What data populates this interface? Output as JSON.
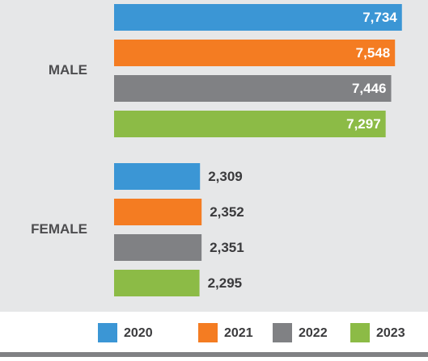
{
  "chart_data": {
    "type": "bar",
    "orientation": "horizontal",
    "categories": [
      "MALE",
      "FEMALE"
    ],
    "series": [
      {
        "name": "2020",
        "color": "#3b96d5",
        "values": [
          7734,
          2309
        ],
        "value_labels": [
          "7,734",
          "2,309"
        ]
      },
      {
        "name": "2021",
        "color": "#f47c22",
        "values": [
          7548,
          2352
        ],
        "value_labels": [
          "7,548",
          "2,352"
        ]
      },
      {
        "name": "2022",
        "color": "#808184",
        "values": [
          7446,
          2351
        ],
        "value_labels": [
          "7,446",
          "2,351"
        ]
      },
      {
        "name": "2023",
        "color": "#8cbb46",
        "values": [
          7297,
          2295
        ],
        "value_labels": [
          "7,297",
          "2,295"
        ]
      }
    ]
  }
}
